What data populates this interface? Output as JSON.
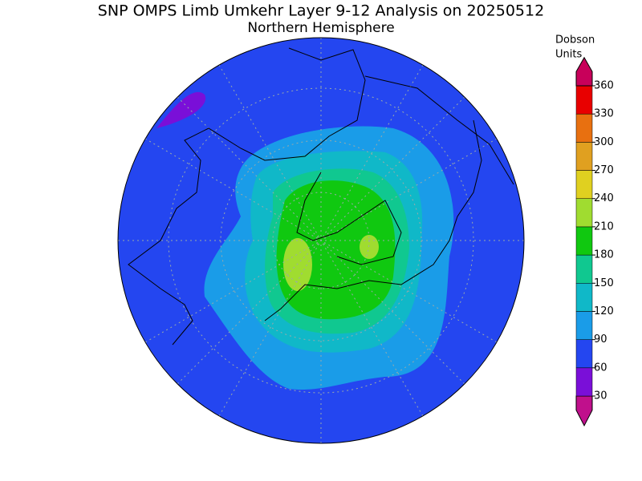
{
  "title": "SNP OMPS Limb Umkehr Layer 9-12 Analysis on 20250512",
  "subtitle": "Northern Hemisphere",
  "colorbar": {
    "label": [
      "Dobson",
      "Units"
    ],
    "ticks": [
      30,
      60,
      90,
      120,
      150,
      180,
      210,
      240,
      270,
      300,
      330,
      360
    ],
    "colors": [
      "#c0108c",
      "#7a0fd8",
      "#2446f0",
      "#1a9ce8",
      "#10b8c8",
      "#10c890",
      "#10c810",
      "#a0dc30",
      "#e0d020",
      "#e0a020",
      "#e87010",
      "#e80000",
      "#c8005a"
    ]
  }
}
